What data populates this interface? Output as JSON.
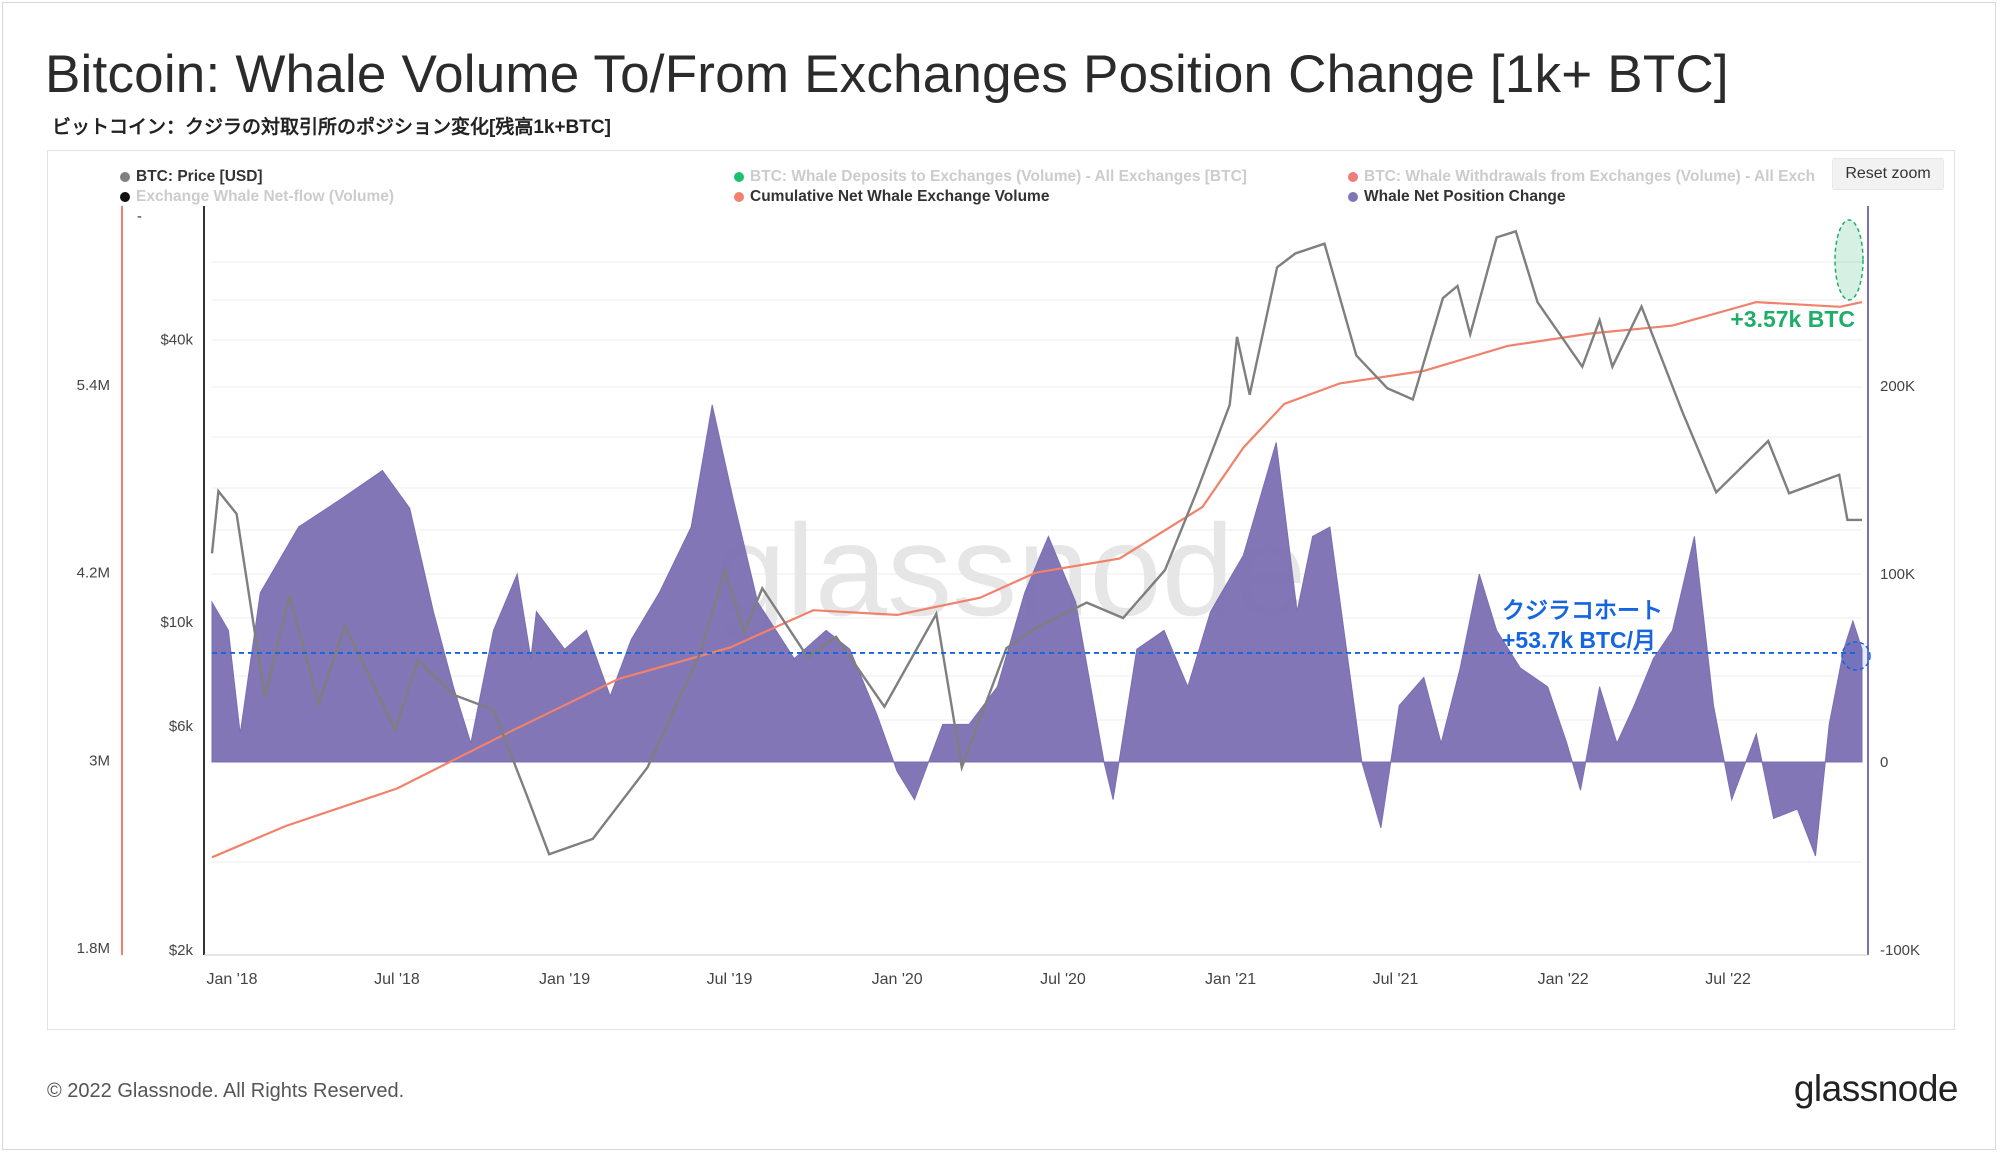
{
  "title": "Bitcoin: Whale Volume To/From Exchanges Position Change [1k+ BTC]",
  "subtitle": "ビットコイン：クジラの対取引所のポジション変化[残高1k+BTC]",
  "reset_zoom_label": "Reset zoom",
  "watermark": "glassnode",
  "footer": {
    "copyright": "© 2022 Glassnode. All Rights Reserved.",
    "logo": "glassnode"
  },
  "legend": [
    {
      "label": "BTC: Price [USD]",
      "color": "#7f7f7f",
      "active": true
    },
    {
      "label": "Exchange Whale Net-flow (Volume)",
      "color": "#111111",
      "active": false
    },
    {
      "label": "BTC: Whale Deposits to Exchanges (Volume) - All Exchanges [BTC]",
      "color": "#1dbf73",
      "active": false
    },
    {
      "label": "Cumulative Net Whale Exchange Volume",
      "color": "#f0826b",
      "active": true
    },
    {
      "label": "BTC: Whale Withdrawals from Exchanges (Volume) - All Exch",
      "color": "#f07b7b",
      "active": false
    },
    {
      "label": "Whale Net Position Change",
      "color": "#8075b5",
      "active": true
    }
  ],
  "legend_dash": "-",
  "annotations": {
    "green": "+3.57k BTC",
    "blue_line1": "クジラコホート",
    "blue_line2": "+53.7k BTC/月"
  },
  "colors": {
    "price": "#7f7f7f",
    "cumulative": "#f0826b",
    "net_position": "#7b6fb3",
    "green": "#1fae6a",
    "blue": "#1565e0",
    "left_axis": "#f0826b",
    "right_axis": "#7b6fb3"
  },
  "chart_data": {
    "type": "area",
    "x_axis": {
      "type": "date",
      "tick_labels": [
        "Jan '18",
        "Jul '18",
        "Jan '19",
        "Jul '19",
        "Jan '20",
        "Jul '20",
        "Jan '21",
        "Jul '21",
        "Jan '22",
        "Jul '22"
      ],
      "range": [
        "2017-12-10",
        "2022-11-25"
      ]
    },
    "axes": {
      "cumulative_axis": {
        "side": "left-outer",
        "ticks": [
          "5.4M",
          "4.2M",
          "3M",
          "1.8M"
        ],
        "tick_values": [
          5400000,
          4200000,
          3000000,
          1800000
        ],
        "range": [
          1800000,
          5400000
        ]
      },
      "price_axis": {
        "side": "left-inner",
        "scale": "log",
        "ticks": [
          "$40k",
          "$10k",
          "$6k",
          "$2k"
        ],
        "tick_values": [
          40000,
          10000,
          6000,
          2000
        ]
      },
      "net_position_axis": {
        "side": "right",
        "ticks": [
          "200K",
          "100K",
          "0",
          "-100K"
        ],
        "tick_values": [
          200000,
          100000,
          0,
          -100000
        ],
        "range": [
          -100000,
          200000
        ]
      }
    },
    "series": [
      {
        "name": "BTC: Price [USD]",
        "type": "line",
        "axis": "price_axis",
        "points": [
          [
            "2017-12-10",
            14000
          ],
          [
            "2017-12-17",
            19000
          ],
          [
            "2018-01-06",
            17000
          ],
          [
            "2018-02-06",
            6900
          ],
          [
            "2018-03-05",
            11400
          ],
          [
            "2018-04-06",
            6700
          ],
          [
            "2018-05-05",
            9800
          ],
          [
            "2018-06-29",
            5900
          ],
          [
            "2018-07-24",
            8300
          ],
          [
            "2018-09-01",
            7000
          ],
          [
            "2018-10-15",
            6500
          ],
          [
            "2018-11-20",
            4300
          ],
          [
            "2018-12-15",
            3200
          ],
          [
            "2019-02-01",
            3450
          ],
          [
            "2019-04-02",
            4900
          ],
          [
            "2019-05-30",
            8600
          ],
          [
            "2019-06-26",
            12900
          ],
          [
            "2019-07-17",
            9500
          ],
          [
            "2019-08-06",
            11800
          ],
          [
            "2019-09-25",
            8400
          ],
          [
            "2019-10-26",
            9300
          ],
          [
            "2019-12-18",
            6600
          ],
          [
            "2020-02-13",
            10400
          ],
          [
            "2020-03-12",
            4900
          ],
          [
            "2020-04-30",
            8800
          ],
          [
            "2020-06-01",
            9700
          ],
          [
            "2020-07-27",
            11000
          ],
          [
            "2020-09-05",
            10200
          ],
          [
            "2020-10-21",
            12900
          ],
          [
            "2020-11-25",
            19000
          ],
          [
            "2020-12-31",
            29000
          ],
          [
            "2021-01-08",
            40500
          ],
          [
            "2021-01-22",
            30500
          ],
          [
            "2021-02-21",
            57000
          ],
          [
            "2021-03-13",
            61000
          ],
          [
            "2021-04-14",
            64000
          ],
          [
            "2021-05-19",
            37000
          ],
          [
            "2021-06-22",
            31500
          ],
          [
            "2021-07-20",
            29800
          ],
          [
            "2021-08-22",
            49000
          ],
          [
            "2021-09-07",
            52000
          ],
          [
            "2021-09-21",
            41000
          ],
          [
            "2021-10-20",
            66000
          ],
          [
            "2021-11-10",
            68000
          ],
          [
            "2021-12-04",
            48000
          ],
          [
            "2022-01-22",
            35000
          ],
          [
            "2022-02-10",
            44000
          ],
          [
            "2022-02-24",
            35000
          ],
          [
            "2022-03-28",
            47000
          ],
          [
            "2022-05-12",
            28000
          ],
          [
            "2022-06-18",
            18900
          ],
          [
            "2022-08-14",
            24300
          ],
          [
            "2022-09-06",
            18800
          ],
          [
            "2022-10-31",
            20600
          ],
          [
            "2022-11-09",
            16500
          ],
          [
            "2022-11-25",
            16500
          ]
        ]
      },
      {
        "name": "Cumulative Net Whale Exchange Volume",
        "type": "line",
        "axis": "cumulative_axis",
        "points": [
          [
            "2017-12-10",
            2380000
          ],
          [
            "2018-03-01",
            2580000
          ],
          [
            "2018-07-01",
            2820000
          ],
          [
            "2018-11-01",
            3180000
          ],
          [
            "2019-03-01",
            3520000
          ],
          [
            "2019-07-01",
            3720000
          ],
          [
            "2019-10-01",
            3960000
          ],
          [
            "2020-01-01",
            3930000
          ],
          [
            "2020-04-01",
            4040000
          ],
          [
            "2020-06-01",
            4200000
          ],
          [
            "2020-09-01",
            4290000
          ],
          [
            "2020-12-01",
            4620000
          ],
          [
            "2021-01-15",
            5000000
          ],
          [
            "2021-03-01",
            5280000
          ],
          [
            "2021-05-01",
            5410000
          ],
          [
            "2021-08-01",
            5490000
          ],
          [
            "2021-11-01",
            5650000
          ],
          [
            "2022-02-01",
            5730000
          ],
          [
            "2022-05-01",
            5780000
          ],
          [
            "2022-08-01",
            5930000
          ],
          [
            "2022-11-01",
            5900000
          ],
          [
            "2022-11-25",
            5930000
          ]
        ]
      },
      {
        "name": "Whale Net Position Change",
        "type": "area",
        "axis": "net_position_axis",
        "points": [
          [
            "2017-12-10",
            85000
          ],
          [
            "2017-12-28",
            70000
          ],
          [
            "2018-01-10",
            15000
          ],
          [
            "2018-02-01",
            90000
          ],
          [
            "2018-03-15",
            125000
          ],
          [
            "2018-05-01",
            140000
          ],
          [
            "2018-06-15",
            155000
          ],
          [
            "2018-07-15",
            135000
          ],
          [
            "2018-08-10",
            80000
          ],
          [
            "2018-09-01",
            40000
          ],
          [
            "2018-09-20",
            10000
          ],
          [
            "2018-10-15",
            70000
          ],
          [
            "2018-11-10",
            100000
          ],
          [
            "2018-11-25",
            55000
          ],
          [
            "2018-12-01",
            80000
          ],
          [
            "2019-01-01",
            60000
          ],
          [
            "2019-01-25",
            70000
          ],
          [
            "2019-02-20",
            35000
          ],
          [
            "2019-03-15",
            65000
          ],
          [
            "2019-04-15",
            90000
          ],
          [
            "2019-05-20",
            125000
          ],
          [
            "2019-06-12",
            190000
          ],
          [
            "2019-07-05",
            140000
          ],
          [
            "2019-08-01",
            85000
          ],
          [
            "2019-09-10",
            55000
          ],
          [
            "2019-10-15",
            70000
          ],
          [
            "2019-11-10",
            60000
          ],
          [
            "2019-12-10",
            25000
          ],
          [
            "2020-01-01",
            -5000
          ],
          [
            "2020-01-20",
            -20000
          ],
          [
            "2020-02-20",
            20000
          ],
          [
            "2020-03-20",
            20000
          ],
          [
            "2020-04-20",
            40000
          ],
          [
            "2020-05-20",
            90000
          ],
          [
            "2020-06-15",
            120000
          ],
          [
            "2020-07-15",
            85000
          ],
          [
            "2020-08-15",
            0
          ],
          [
            "2020-08-25",
            -20000
          ],
          [
            "2020-09-20",
            60000
          ],
          [
            "2020-10-20",
            70000
          ],
          [
            "2020-11-15",
            40000
          ],
          [
            "2020-12-10",
            80000
          ],
          [
            "2021-01-15",
            110000
          ],
          [
            "2021-02-20",
            170000
          ],
          [
            "2021-03-15",
            80000
          ],
          [
            "2021-04-01",
            120000
          ],
          [
            "2021-04-20",
            125000
          ],
          [
            "2021-05-25",
            0
          ],
          [
            "2021-06-15",
            -35000
          ],
          [
            "2021-07-05",
            30000
          ],
          [
            "2021-08-01",
            45000
          ],
          [
            "2021-08-20",
            10000
          ],
          [
            "2021-09-10",
            50000
          ],
          [
            "2021-10-01",
            100000
          ],
          [
            "2021-10-20",
            70000
          ],
          [
            "2021-11-15",
            50000
          ],
          [
            "2021-12-15",
            40000
          ],
          [
            "2022-01-05",
            10000
          ],
          [
            "2022-01-20",
            -15000
          ],
          [
            "2022-02-10",
            40000
          ],
          [
            "2022-03-01",
            10000
          ],
          [
            "2022-03-20",
            30000
          ],
          [
            "2022-04-10",
            55000
          ],
          [
            "2022-05-01",
            70000
          ],
          [
            "2022-05-25",
            120000
          ],
          [
            "2022-06-15",
            30000
          ],
          [
            "2022-07-05",
            -20000
          ],
          [
            "2022-08-01",
            15000
          ],
          [
            "2022-08-20",
            -30000
          ],
          [
            "2022-09-15",
            -25000
          ],
          [
            "2022-10-05",
            -50000
          ],
          [
            "2022-10-20",
            20000
          ],
          [
            "2022-11-05",
            60000
          ],
          [
            "2022-11-15",
            75000
          ],
          [
            "2022-11-25",
            60000
          ]
        ]
      }
    ],
    "reference_lines": [
      {
        "axis": "net_position_axis",
        "value": 58000,
        "style": "dashed",
        "color": "#1565e0"
      }
    ],
    "grid": true,
    "legend_position": "top"
  }
}
